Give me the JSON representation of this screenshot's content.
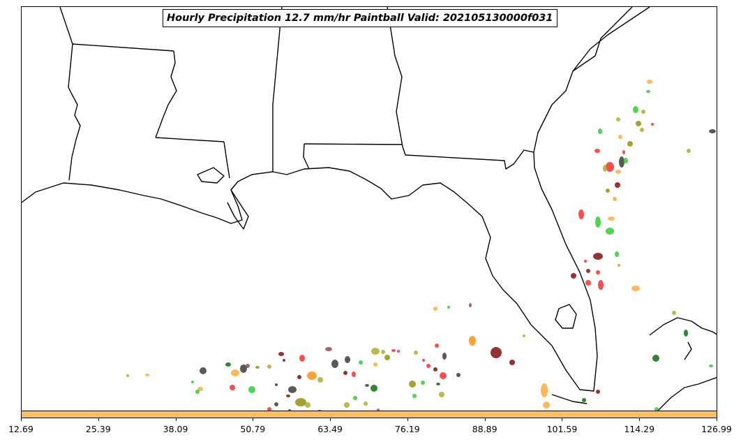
{
  "title": "Hourly Precipitation 12.7 mm/hr Paintball Valid: 202105130000f031",
  "colorbar": {
    "color": "#ffbf60",
    "ticks": [
      "12.69",
      "25.39",
      "38.09",
      "50.79",
      "63.49",
      "76.19",
      "88.89",
      "101.59",
      "114.29",
      "126.99"
    ]
  },
  "colors": {
    "red": "#ff2020",
    "dark_red": "#7a0000",
    "orange": "#ff8c00",
    "light_orange": "#ffa830",
    "olive": "#8c8c00",
    "yellow_olive": "#a8a820",
    "green": "#22cc22",
    "dark_green": "#006400",
    "dark_gray": "#303030",
    "brown": "#8b4040"
  }
}
